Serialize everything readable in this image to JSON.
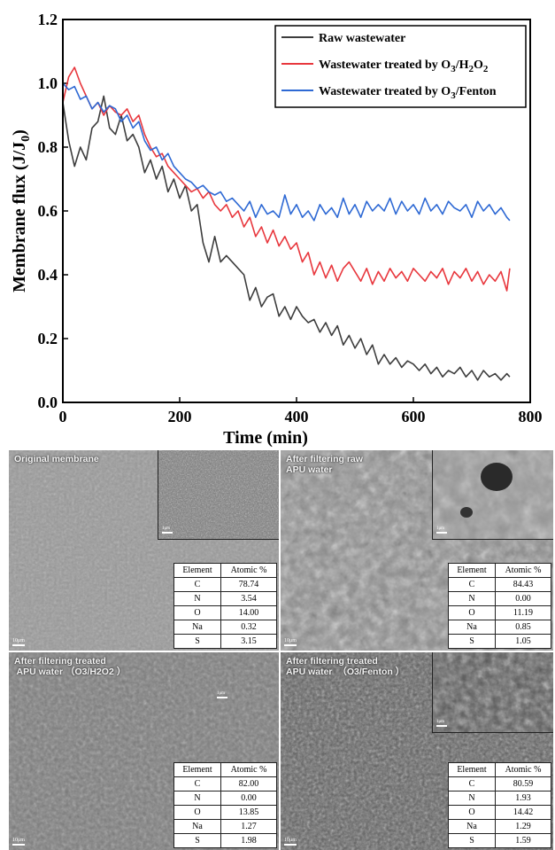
{
  "chart_data": {
    "type": "line",
    "xlabel": "Time (min)",
    "ylabel": "Membrane flux (J/J",
    "ylabel_sub": "0",
    "ylabel_end": ")",
    "xlim": [
      0,
      800
    ],
    "ylim": [
      0.0,
      1.2
    ],
    "xticks": [
      "0",
      "200",
      "400",
      "600",
      "800"
    ],
    "yticks": [
      "0.0",
      "0.2",
      "0.4",
      "0.6",
      "0.8",
      "1.0",
      "1.2"
    ],
    "legend_position": "top-right",
    "series": [
      {
        "name": "Raw wastewater",
        "name_parts": [
          [
            "Raw wastewater",
            ""
          ]
        ],
        "color": "#3d3d3d",
        "x": [
          0,
          10,
          20,
          30,
          40,
          50,
          60,
          70,
          80,
          90,
          100,
          110,
          120,
          130,
          140,
          150,
          160,
          170,
          180,
          190,
          200,
          210,
          220,
          230,
          240,
          250,
          260,
          270,
          280,
          290,
          300,
          310,
          320,
          330,
          340,
          350,
          360,
          370,
          380,
          390,
          400,
          410,
          420,
          430,
          440,
          450,
          460,
          470,
          480,
          490,
          500,
          510,
          520,
          530,
          540,
          550,
          560,
          570,
          580,
          590,
          600,
          610,
          620,
          630,
          640,
          650,
          660,
          670,
          680,
          690,
          700,
          710,
          720,
          730,
          740,
          750,
          760,
          765
        ],
        "values": [
          0.94,
          0.82,
          0.74,
          0.8,
          0.76,
          0.86,
          0.88,
          0.96,
          0.86,
          0.84,
          0.9,
          0.82,
          0.84,
          0.8,
          0.72,
          0.76,
          0.7,
          0.74,
          0.66,
          0.7,
          0.64,
          0.68,
          0.6,
          0.62,
          0.5,
          0.44,
          0.52,
          0.44,
          0.46,
          0.44,
          0.42,
          0.4,
          0.32,
          0.36,
          0.3,
          0.33,
          0.34,
          0.27,
          0.3,
          0.26,
          0.3,
          0.27,
          0.25,
          0.26,
          0.22,
          0.25,
          0.21,
          0.24,
          0.18,
          0.21,
          0.17,
          0.2,
          0.15,
          0.18,
          0.12,
          0.15,
          0.12,
          0.14,
          0.11,
          0.13,
          0.12,
          0.1,
          0.12,
          0.09,
          0.11,
          0.08,
          0.1,
          0.09,
          0.11,
          0.08,
          0.1,
          0.07,
          0.1,
          0.08,
          0.09,
          0.07,
          0.09,
          0.08
        ]
      },
      {
        "name": "Wastewater treated by O3/H2O2",
        "name_parts": [
          [
            "Wastewater treated by O",
            ""
          ],
          [
            "3",
            "sub"
          ],
          [
            "/H",
            ""
          ],
          [
            "2",
            "sub"
          ],
          [
            "O",
            ""
          ],
          [
            "2",
            "sub"
          ]
        ],
        "color": "#e8373d",
        "x": [
          0,
          10,
          20,
          30,
          40,
          50,
          60,
          70,
          80,
          90,
          100,
          110,
          120,
          130,
          140,
          150,
          160,
          170,
          180,
          190,
          200,
          210,
          220,
          230,
          240,
          250,
          260,
          270,
          280,
          290,
          300,
          310,
          320,
          330,
          340,
          350,
          360,
          370,
          380,
          390,
          400,
          410,
          420,
          430,
          440,
          450,
          460,
          470,
          480,
          490,
          500,
          510,
          520,
          530,
          540,
          550,
          560,
          570,
          580,
          590,
          600,
          610,
          620,
          630,
          640,
          650,
          660,
          670,
          680,
          690,
          700,
          710,
          720,
          730,
          740,
          750,
          760,
          765
        ],
        "values": [
          0.94,
          1.02,
          1.05,
          1.0,
          0.96,
          0.92,
          0.94,
          0.9,
          0.93,
          0.91,
          0.9,
          0.92,
          0.88,
          0.9,
          0.84,
          0.8,
          0.77,
          0.78,
          0.74,
          0.72,
          0.7,
          0.68,
          0.66,
          0.67,
          0.64,
          0.66,
          0.62,
          0.6,
          0.62,
          0.58,
          0.6,
          0.55,
          0.58,
          0.52,
          0.55,
          0.5,
          0.54,
          0.49,
          0.52,
          0.48,
          0.5,
          0.44,
          0.47,
          0.4,
          0.44,
          0.39,
          0.43,
          0.38,
          0.42,
          0.44,
          0.41,
          0.38,
          0.42,
          0.37,
          0.41,
          0.38,
          0.42,
          0.39,
          0.41,
          0.38,
          0.42,
          0.4,
          0.38,
          0.41,
          0.39,
          0.42,
          0.37,
          0.41,
          0.39,
          0.42,
          0.38,
          0.41,
          0.37,
          0.4,
          0.38,
          0.41,
          0.35,
          0.42
        ]
      },
      {
        "name": "Wastewater treated by O3/Fenton",
        "name_parts": [
          [
            "Wastewater treated by O",
            ""
          ],
          [
            "3",
            "sub"
          ],
          [
            "/Fenton",
            ""
          ]
        ],
        "color": "#2e69d4",
        "x": [
          0,
          10,
          20,
          30,
          40,
          50,
          60,
          70,
          80,
          90,
          100,
          110,
          120,
          130,
          140,
          150,
          160,
          170,
          180,
          190,
          200,
          210,
          220,
          230,
          240,
          250,
          260,
          270,
          280,
          290,
          300,
          310,
          320,
          330,
          340,
          350,
          360,
          370,
          380,
          390,
          400,
          410,
          420,
          430,
          440,
          450,
          460,
          470,
          480,
          490,
          500,
          510,
          520,
          530,
          540,
          550,
          560,
          570,
          580,
          590,
          600,
          610,
          620,
          630,
          640,
          650,
          660,
          670,
          680,
          690,
          700,
          710,
          720,
          730,
          740,
          750,
          760,
          765
        ],
        "values": [
          1.0,
          0.98,
          0.99,
          0.95,
          0.96,
          0.92,
          0.94,
          0.91,
          0.93,
          0.92,
          0.88,
          0.9,
          0.86,
          0.88,
          0.82,
          0.79,
          0.8,
          0.76,
          0.78,
          0.74,
          0.72,
          0.7,
          0.69,
          0.67,
          0.68,
          0.66,
          0.65,
          0.66,
          0.63,
          0.64,
          0.62,
          0.6,
          0.63,
          0.58,
          0.62,
          0.59,
          0.6,
          0.58,
          0.65,
          0.59,
          0.62,
          0.58,
          0.6,
          0.57,
          0.62,
          0.59,
          0.61,
          0.58,
          0.64,
          0.59,
          0.62,
          0.58,
          0.63,
          0.6,
          0.62,
          0.6,
          0.64,
          0.59,
          0.63,
          0.6,
          0.62,
          0.59,
          0.64,
          0.6,
          0.62,
          0.59,
          0.63,
          0.61,
          0.6,
          0.62,
          0.58,
          0.63,
          0.6,
          0.62,
          0.59,
          0.61,
          0.58,
          0.57
        ]
      }
    ]
  },
  "panels": [
    {
      "title": "Original membrane",
      "table": {
        "headers": [
          "Element",
          "Atomic %"
        ],
        "rows": [
          [
            "C",
            "78.74"
          ],
          [
            "N",
            "3.54"
          ],
          [
            "O",
            "14.00"
          ],
          [
            "Na",
            "0.32"
          ],
          [
            "S",
            "3.15"
          ]
        ]
      }
    },
    {
      "title": "After filtering raw\nAPU water",
      "table": {
        "headers": [
          "Element",
          "Atomic %"
        ],
        "rows": [
          [
            "C",
            "84.43"
          ],
          [
            "N",
            "0.00"
          ],
          [
            "O",
            "11.19"
          ],
          [
            "Na",
            "0.85"
          ],
          [
            "S",
            "1.05"
          ]
        ]
      }
    },
    {
      "title": "After filtering treated\n APU water （O3/H2O2 ）",
      "table": {
        "headers": [
          "Element",
          "Atomic %"
        ],
        "rows": [
          [
            "C",
            "82.00"
          ],
          [
            "N",
            "0.00"
          ],
          [
            "O",
            "13.85"
          ],
          [
            "Na",
            "1.27"
          ],
          [
            "S",
            "1.98"
          ]
        ]
      }
    },
    {
      "title": "After filtering treated\nAPU water  （O3/Fenton ）",
      "table": {
        "headers": [
          "Element",
          "Atomic %"
        ],
        "rows": [
          [
            "C",
            "80.59"
          ],
          [
            "N",
            "1.93"
          ],
          [
            "O",
            "14.42"
          ],
          [
            "Na",
            "1.29"
          ],
          [
            "S",
            "1.59"
          ]
        ]
      }
    }
  ],
  "scale_labels": {
    "main": "10μm",
    "inset": "1μm"
  }
}
